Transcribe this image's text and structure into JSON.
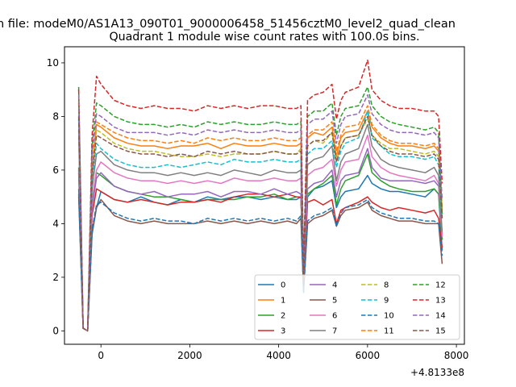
{
  "figure": {
    "suptitle": "n file: modeM0/AS1A13_090T01_9000006458_51456cztM0_level2_quad_clean",
    "title": "Quadrant 1 module wise count rates with 100.0s bins.",
    "offset_text": "+4.8133e8"
  },
  "chart_data": {
    "type": "line",
    "title": "Quadrant 1 module wise count rates with 100.0s bins.",
    "x_offset": 481330000,
    "xlim": [
      -820,
      8180
    ],
    "ylim": [
      -0.5,
      10.6
    ],
    "xticks": [
      0,
      2000,
      4000,
      6000,
      8000
    ],
    "xtick_labels": [
      "0",
      "2000",
      "4000",
      "6000",
      "8000"
    ],
    "yticks": [
      0,
      2,
      4,
      6,
      8,
      10
    ],
    "ytick_labels": [
      "0",
      "2",
      "4",
      "6",
      "8",
      "10"
    ],
    "grid": false,
    "legend_placement": "lower-right",
    "legend_columns": 4,
    "x": [
      -500,
      -400,
      -300,
      -200,
      -100,
      0,
      300,
      600,
      900,
      1200,
      1500,
      1800,
      2100,
      2400,
      2700,
      3000,
      3300,
      3600,
      3900,
      4200,
      4400,
      4500,
      4560,
      4650,
      4800,
      5000,
      5200,
      5300,
      5400,
      5500,
      5800,
      6000,
      6100,
      6300,
      6500,
      6700,
      7000,
      7300,
      7500,
      7600,
      7680
    ],
    "series": [
      {
        "name": "0",
        "color": "#1f77b4",
        "dash": "solid",
        "values": [
          5.3,
          0.1,
          0.0,
          3.6,
          4.6,
          5.2,
          4.9,
          4.8,
          5.0,
          4.8,
          4.7,
          4.9,
          4.8,
          5.0,
          4.9,
          5.0,
          5.0,
          4.9,
          5.0,
          4.9,
          4.9,
          5.0,
          2.0,
          5.0,
          5.3,
          5.4,
          5.6,
          4.6,
          5.0,
          5.2,
          5.3,
          5.8,
          5.5,
          5.3,
          5.2,
          5.2,
          5.1,
          5.0,
          5.3,
          5.1,
          3.0
        ]
      },
      {
        "name": "1",
        "color": "#ff7f0e",
        "dash": "solid",
        "values": [
          8.6,
          0.1,
          0.0,
          5.9,
          7.7,
          7.6,
          7.2,
          7.0,
          6.9,
          6.9,
          6.8,
          6.9,
          6.9,
          7.0,
          6.8,
          7.0,
          6.9,
          6.9,
          7.0,
          6.9,
          6.9,
          7.0,
          1.9,
          7.2,
          7.4,
          7.3,
          7.6,
          6.5,
          7.2,
          7.4,
          7.5,
          8.2,
          7.6,
          7.2,
          7.0,
          6.9,
          6.9,
          6.8,
          6.9,
          6.7,
          4.5
        ]
      },
      {
        "name": "2",
        "color": "#2ca02c",
        "dash": "solid",
        "values": [
          6.1,
          0.1,
          0.0,
          4.7,
          5.9,
          5.8,
          5.4,
          5.2,
          5.1,
          5.0,
          5.0,
          4.9,
          4.8,
          4.9,
          4.9,
          4.9,
          5.0,
          5.0,
          5.1,
          4.9,
          5.0,
          5.0,
          2.0,
          5.1,
          5.3,
          5.5,
          5.8,
          4.7,
          5.3,
          5.6,
          5.8,
          6.6,
          5.9,
          5.6,
          5.4,
          5.3,
          5.2,
          5.2,
          5.3,
          5.1,
          3.4
        ]
      },
      {
        "name": "3",
        "color": "#d62728",
        "dash": "solid",
        "values": [
          5.9,
          0.1,
          0.0,
          4.3,
          5.3,
          5.2,
          4.9,
          4.8,
          4.9,
          4.8,
          4.7,
          4.8,
          4.8,
          4.9,
          4.8,
          5.0,
          5.1,
          5.1,
          5.0,
          5.1,
          5.0,
          5.0,
          1.9,
          4.8,
          4.9,
          4.7,
          4.9,
          4.0,
          4.5,
          4.6,
          4.8,
          5.0,
          4.8,
          4.6,
          4.5,
          4.6,
          4.5,
          4.4,
          4.5,
          4.2,
          3.1
        ]
      },
      {
        "name": "4",
        "color": "#9467bd",
        "dash": "solid",
        "values": [
          6.0,
          0.1,
          0.0,
          4.6,
          5.7,
          5.9,
          5.4,
          5.2,
          5.1,
          5.2,
          5.0,
          5.1,
          5.1,
          5.2,
          5.0,
          5.2,
          5.2,
          5.1,
          5.3,
          5.1,
          5.2,
          5.1,
          2.0,
          5.3,
          5.5,
          5.6,
          6.0,
          5.0,
          5.6,
          5.8,
          5.9,
          6.8,
          6.1,
          5.7,
          5.6,
          5.6,
          5.6,
          5.5,
          5.6,
          5.4,
          3.6
        ]
      },
      {
        "name": "5",
        "color": "#8c564b",
        "dash": "solid",
        "values": [
          5.0,
          0.1,
          0.0,
          3.7,
          4.6,
          4.9,
          4.3,
          4.1,
          4.0,
          4.1,
          4.0,
          4.0,
          4.0,
          4.1,
          4.0,
          4.1,
          4.0,
          4.1,
          4.0,
          4.1,
          4.0,
          4.2,
          1.5,
          4.0,
          4.2,
          4.3,
          4.5,
          3.9,
          4.3,
          4.5,
          4.6,
          4.8,
          4.5,
          4.3,
          4.2,
          4.1,
          4.1,
          4.0,
          4.0,
          4.0,
          2.5
        ]
      },
      {
        "name": "6",
        "color": "#e377c2",
        "dash": "solid",
        "values": [
          7.2,
          0.1,
          0.0,
          4.9,
          6.0,
          6.3,
          5.9,
          5.7,
          5.6,
          5.6,
          5.5,
          5.6,
          5.5,
          5.6,
          5.5,
          5.7,
          5.6,
          5.6,
          5.7,
          5.6,
          5.6,
          5.7,
          2.0,
          5.8,
          6.0,
          6.1,
          6.4,
          5.4,
          6.0,
          6.3,
          6.4,
          7.3,
          6.5,
          6.1,
          5.9,
          5.8,
          5.7,
          5.6,
          5.8,
          5.5,
          3.5
        ]
      },
      {
        "name": "7",
        "color": "#7f7f7f",
        "dash": "solid",
        "values": [
          7.5,
          0.1,
          0.0,
          5.3,
          6.6,
          6.7,
          6.2,
          6.0,
          5.9,
          5.9,
          5.8,
          5.9,
          5.8,
          5.9,
          5.8,
          6.0,
          5.9,
          5.8,
          6.0,
          5.9,
          5.9,
          6.0,
          2.1,
          6.2,
          6.4,
          6.5,
          6.9,
          5.6,
          6.3,
          6.6,
          6.8,
          7.7,
          6.9,
          6.4,
          6.2,
          6.1,
          6.0,
          5.9,
          6.1,
          5.8,
          3.7
        ]
      },
      {
        "name": "8",
        "color": "#bcbd22",
        "dash": "dashed",
        "values": [
          8.3,
          0.1,
          0.0,
          6.0,
          7.5,
          7.4,
          7.0,
          6.8,
          6.7,
          6.7,
          6.6,
          6.5,
          6.5,
          6.6,
          6.5,
          6.6,
          6.6,
          6.6,
          6.7,
          6.6,
          6.6,
          6.8,
          2.0,
          6.9,
          7.1,
          7.0,
          7.4,
          6.3,
          6.9,
          7.2,
          7.3,
          7.9,
          7.3,
          7.0,
          6.8,
          6.8,
          6.7,
          6.6,
          6.7,
          6.5,
          4.4
        ]
      },
      {
        "name": "9",
        "color": "#17becf",
        "dash": "dashed",
        "values": [
          7.9,
          0.1,
          0.0,
          5.6,
          7.0,
          6.8,
          6.4,
          6.2,
          6.1,
          6.1,
          6.2,
          6.1,
          6.2,
          6.3,
          6.2,
          6.4,
          6.3,
          6.3,
          6.4,
          6.3,
          6.3,
          6.4,
          2.1,
          6.6,
          6.8,
          6.8,
          7.1,
          6.1,
          6.7,
          7.0,
          7.2,
          8.2,
          7.2,
          6.9,
          6.6,
          6.5,
          6.5,
          6.4,
          6.5,
          6.2,
          4.2
        ]
      },
      {
        "name": "10",
        "color": "#1f77b4",
        "dash": "dashed",
        "values": [
          5.1,
          0.1,
          0.0,
          3.8,
          4.7,
          4.8,
          4.4,
          4.2,
          4.1,
          4.2,
          4.1,
          4.1,
          4.0,
          4.2,
          4.1,
          4.2,
          4.1,
          4.2,
          4.1,
          4.2,
          4.1,
          4.3,
          1.4,
          4.1,
          4.3,
          4.4,
          4.6,
          3.9,
          4.4,
          4.6,
          4.7,
          4.9,
          4.6,
          4.4,
          4.3,
          4.2,
          4.2,
          4.1,
          4.1,
          4.0,
          2.8
        ]
      },
      {
        "name": "11",
        "color": "#ff7f0e",
        "dash": "dashed",
        "values": [
          8.5,
          0.1,
          0.0,
          6.2,
          7.8,
          7.7,
          7.4,
          7.2,
          7.1,
          7.1,
          7.0,
          7.1,
          7.0,
          7.2,
          7.1,
          7.2,
          7.1,
          7.1,
          7.2,
          7.1,
          7.1,
          7.2,
          2.0,
          7.3,
          7.5,
          7.5,
          7.8,
          6.7,
          7.3,
          7.6,
          7.7,
          8.4,
          7.7,
          7.3,
          7.1,
          7.0,
          7.0,
          6.9,
          7.0,
          6.8,
          4.6
        ]
      },
      {
        "name": "12",
        "color": "#2ca02c",
        "dash": "dashed",
        "values": [
          9.1,
          0.1,
          0.0,
          6.9,
          8.5,
          8.4,
          8.0,
          7.8,
          7.7,
          7.7,
          7.6,
          7.7,
          7.6,
          7.8,
          7.7,
          7.8,
          7.7,
          7.7,
          7.8,
          7.7,
          7.7,
          7.8,
          2.3,
          8.0,
          8.2,
          8.2,
          8.5,
          7.3,
          8.0,
          8.3,
          8.4,
          9.1,
          8.4,
          8.0,
          7.8,
          7.7,
          7.6,
          7.5,
          7.6,
          7.4,
          4.3
        ]
      },
      {
        "name": "13",
        "color": "#d62728",
        "dash": "dashed",
        "values": [
          9.0,
          0.1,
          0.0,
          7.3,
          9.5,
          9.2,
          8.6,
          8.4,
          8.3,
          8.4,
          8.3,
          8.3,
          8.2,
          8.4,
          8.3,
          8.4,
          8.3,
          8.4,
          8.4,
          8.3,
          8.3,
          8.4,
          2.5,
          8.6,
          8.8,
          8.9,
          9.2,
          7.9,
          8.6,
          8.9,
          9.1,
          10.1,
          9.0,
          8.6,
          8.4,
          8.3,
          8.3,
          8.2,
          8.2,
          8.0,
          5.5
        ]
      },
      {
        "name": "14",
        "color": "#9467bd",
        "dash": "dashed",
        "values": [
          8.8,
          0.1,
          0.0,
          6.6,
          8.1,
          8.0,
          7.6,
          7.4,
          7.4,
          7.4,
          7.3,
          7.4,
          7.3,
          7.5,
          7.4,
          7.5,
          7.4,
          7.4,
          7.5,
          7.4,
          7.4,
          7.5,
          2.2,
          7.7,
          7.9,
          7.9,
          8.2,
          7.0,
          7.7,
          8.0,
          8.1,
          8.8,
          8.1,
          7.7,
          7.5,
          7.4,
          7.4,
          7.3,
          7.4,
          7.2,
          4.9
        ]
      },
      {
        "name": "15",
        "color": "#8c564b",
        "dash": "dashed",
        "values": [
          8.0,
          0.1,
          0.0,
          5.8,
          7.3,
          7.2,
          6.9,
          6.7,
          6.6,
          6.6,
          6.5,
          6.6,
          6.5,
          6.7,
          6.6,
          6.7,
          6.6,
          6.6,
          6.7,
          6.6,
          6.6,
          6.7,
          1.9,
          6.9,
          7.1,
          7.1,
          7.4,
          6.3,
          6.9,
          7.2,
          7.3,
          8.0,
          7.3,
          6.9,
          6.7,
          6.6,
          6.6,
          6.5,
          6.6,
          6.4,
          4.2
        ]
      }
    ]
  }
}
